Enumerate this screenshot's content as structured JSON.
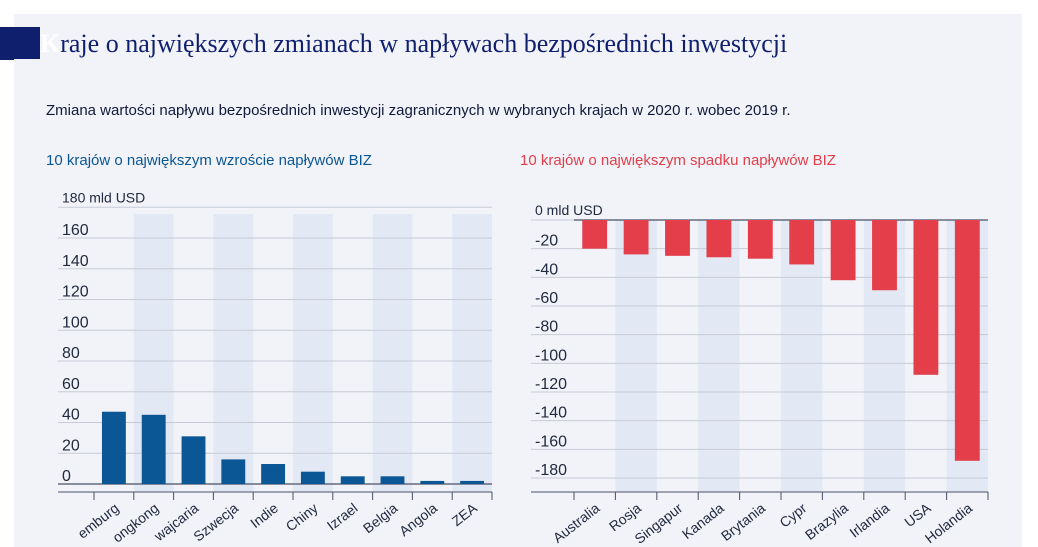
{
  "header": {
    "title_initial": "K",
    "title_rest": "raje o największych zmianach w napływach bezpośrednich inwestycji"
  },
  "subtitle": "Zmiana wartości napływu bezpośrednich inwestycji zagranicznych w wybranych krajach w 2020 r. wobec 2019 r.",
  "colors": {
    "increase": "#0b5694",
    "decrease": "#e33e4a",
    "band": "#e2e9f4",
    "title": "#0f1f6e"
  },
  "chart_data": [
    {
      "type": "bar",
      "title": "10 krajów o największym wzroście napływów BIZ",
      "unit_label": "180 mld USD",
      "categories": [
        "Luksemburg",
        "Hongkong",
        "Szwajcaria",
        "Szwecja",
        "Indie",
        "Chiny",
        "Izrael",
        "Belgia",
        "Angola",
        "ZEA"
      ],
      "categories_visible": [
        "emburg",
        "ongkong",
        "wajcaria",
        "Szwecja",
        "Indie",
        "Chiny",
        "Izrael",
        "Belgia",
        "Angola",
        "ZEA"
      ],
      "values": [
        47,
        45,
        31,
        16,
        13,
        8,
        5,
        5,
        2,
        2
      ],
      "ylim": [
        0,
        180
      ],
      "yticks": [
        "0",
        "20",
        "40",
        "60",
        "80",
        "100",
        "120",
        "140",
        "160"
      ],
      "grid": true
    },
    {
      "type": "bar",
      "title": "10 krajów o największym spadku napływów BIZ",
      "unit_label": "0 mld USD",
      "categories": [
        "Australia",
        "Rosja",
        "Singapur",
        "Kanada",
        "Wielka Brytania",
        "Cypr",
        "Brazylia",
        "Irlandia",
        "USA",
        "Holandia"
      ],
      "categories_visible": [
        "Australia",
        "Rosja",
        "Singapur",
        "Kanada",
        "Brytania",
        "Cypr",
        "Brazylia",
        "Irlandia",
        "USA",
        "Holandia"
      ],
      "values": [
        -20,
        -24,
        -25,
        -26,
        -27,
        -31,
        -42,
        -49,
        -108,
        -168
      ],
      "ylim": [
        -180,
        0
      ],
      "yticks": [
        "-20",
        "-40",
        "-60",
        "-80",
        "-100",
        "-120",
        "-140",
        "-160",
        "-180"
      ],
      "grid": true
    }
  ]
}
